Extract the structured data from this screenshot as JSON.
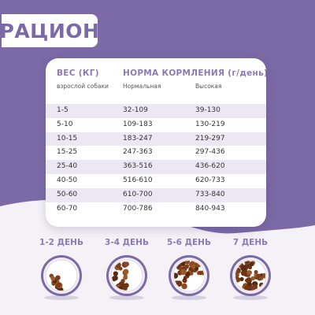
{
  "title": "РАЦИОН",
  "table": {
    "weight_header": "ВЕС (КГ)",
    "weight_sub": "взрослой собаки",
    "norm_header": "НОРМА КОРМЛЕНИЯ (г/день)",
    "col_normal": "Нормальная",
    "col_high": "Высокая",
    "rows": [
      {
        "weight": "1-5",
        "normal": "32-109",
        "high": "39-130"
      },
      {
        "weight": "5-10",
        "normal": "109-183",
        "high": "130-219"
      },
      {
        "weight": "10-15",
        "normal": "183-247",
        "high": "219-297"
      },
      {
        "weight": "15-25",
        "normal": "247-363",
        "high": "297-436"
      },
      {
        "weight": "25-40",
        "normal": "363-516",
        "high": "436-620"
      },
      {
        "weight": "40-50",
        "normal": "516-610",
        "high": "620-733"
      },
      {
        "weight": "50-60",
        "normal": "610-700",
        "high": "733-840"
      },
      {
        "weight": "60-70",
        "normal": "700-786",
        "high": "840-943"
      }
    ]
  },
  "transition": [
    {
      "label": "1-2 ДЕНЬ",
      "new_food_fraction": 0.25
    },
    {
      "label": "3-4 ДЕНЬ",
      "new_food_fraction": 0.5
    },
    {
      "label": "5-6 ДЕНЬ",
      "new_food_fraction": 0.75
    },
    {
      "label": "7 ДЕНЬ",
      "new_food_fraction": 1.0
    }
  ],
  "colors": {
    "accent": "#7b6aa6",
    "header_text": "#8a7bb5",
    "row_shade": "#ebe7f3",
    "background_light": "#f4f2f7",
    "kibble": "#7a3e1c"
  }
}
